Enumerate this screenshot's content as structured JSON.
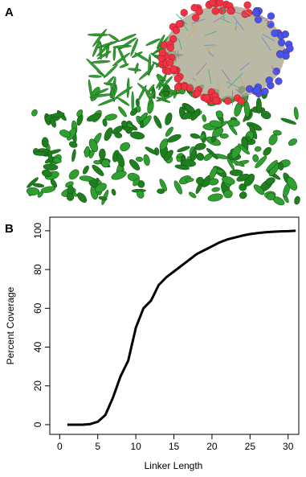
{
  "panel_a": {
    "label": "A"
  },
  "chart_data": {
    "type": "line",
    "panel_label": "B",
    "xlabel": "Linker Length",
    "ylabel": "Percent Coverage",
    "x": [
      1,
      2,
      3,
      4,
      5,
      6,
      7,
      8,
      9,
      10,
      11,
      12,
      13,
      14,
      15,
      16,
      17,
      18,
      19,
      20,
      21,
      22,
      23,
      24,
      25,
      26,
      27,
      28,
      29,
      30,
      31
    ],
    "series": [
      {
        "color": "#000000",
        "values": [
          0,
          0,
          0,
          0.3,
          1.5,
          5,
          14,
          25,
          33,
          50,
          60,
          64,
          72,
          76,
          79,
          82,
          85,
          88,
          90,
          92,
          94,
          95.5,
          96.5,
          97.5,
          98.3,
          98.8,
          99.2,
          99.5,
          99.7,
          99.8,
          100
        ]
      }
    ],
    "xlim": [
      -1.3,
      31.4
    ],
    "xticks": [
      0,
      5,
      10,
      15,
      20,
      25,
      30
    ],
    "ylim": [
      -5,
      107
    ],
    "yticks": [
      0,
      20,
      40,
      60,
      80,
      100
    ]
  }
}
